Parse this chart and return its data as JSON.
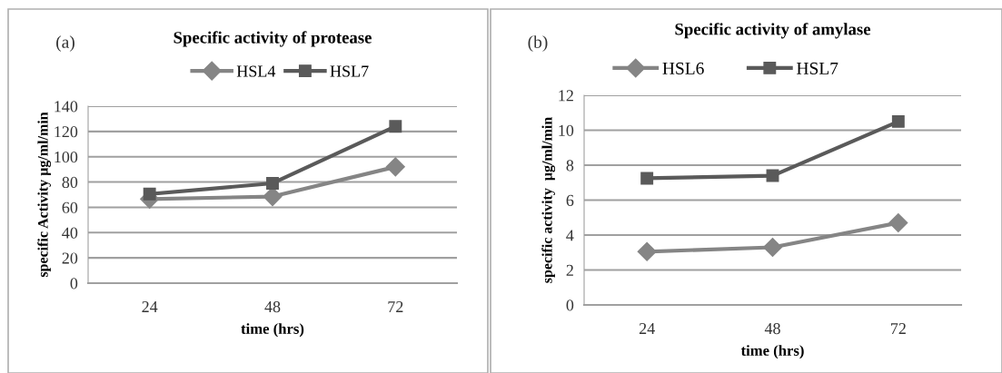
{
  "chart_data": [
    {
      "type": "line",
      "title": "Specific activity of protease",
      "xlabel": "time (hrs)",
      "ylabel": "specific Activity µg/ml/min",
      "annotations": [
        "(a)"
      ],
      "categories": [
        "24",
        "48",
        "72"
      ],
      "series": [
        {
          "name": "HSL4",
          "color": "#858585",
          "marker": "diamond",
          "values": [
            66.5,
            68.5,
            92
          ]
        },
        {
          "name": "HSL7",
          "color": "#5a5a5a",
          "marker": "square",
          "values": [
            70.5,
            79,
            124
          ]
        }
      ],
      "ylim": [
        0,
        140
      ],
      "yticks": [
        0,
        20,
        40,
        60,
        80,
        100,
        120,
        140
      ],
      "grid": "y",
      "legend": "top"
    },
    {
      "type": "line",
      "title": "Specific activity of amylase",
      "xlabel": "time (hrs)",
      "ylabel": "specific activity  µg/ml/min",
      "annotations": [
        "(b)"
      ],
      "categories": [
        "24",
        "48",
        "72"
      ],
      "series": [
        {
          "name": "HSL6",
          "color": "#858585",
          "marker": "diamond",
          "values": [
            3.05,
            3.3,
            4.7
          ]
        },
        {
          "name": "HSL7",
          "color": "#5a5a5a",
          "marker": "square",
          "values": [
            7.25,
            7.4,
            10.5
          ]
        }
      ],
      "ylim": [
        0,
        12
      ],
      "yticks": [
        0,
        2,
        4,
        6,
        8,
        10,
        12
      ],
      "grid": "y",
      "legend": "top"
    }
  ]
}
